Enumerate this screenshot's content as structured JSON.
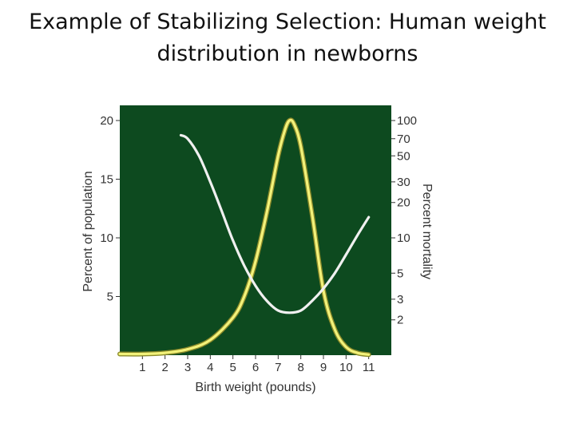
{
  "slide": {
    "title_line1": "Example of Stabilizing Selection: Human weight",
    "title_line2": "distribution in newborns"
  },
  "chart_data": {
    "type": "line",
    "xlabel": "Birth weight (pounds)",
    "ylabel_left": "Percent of population",
    "ylabel_right": "Percent mortality",
    "x_ticks": [
      1,
      2,
      3,
      4,
      5,
      6,
      7,
      8,
      9,
      10,
      11
    ],
    "xlim": [
      0,
      12
    ],
    "y_left_ticks": [
      5,
      10,
      15,
      20
    ],
    "y_left_lim": [
      0,
      20
    ],
    "y_right_ticks": [
      2,
      3,
      5,
      10,
      20,
      30,
      50,
      70,
      100
    ],
    "y_right_scale": "log",
    "y_right_lim": [
      1,
      100
    ],
    "background_color": "#0d4a1f",
    "grid": false,
    "legend": "none",
    "series": [
      {
        "axis": "left",
        "color": "#f2f27a",
        "x": [
          0,
          1,
          2,
          3,
          4,
          5,
          5.5,
          6,
          6.5,
          7,
          7.3,
          7.5,
          7.7,
          8,
          8.5,
          9,
          9.5,
          10,
          10.5,
          11
        ],
        "values": [
          0.1,
          0.1,
          0.2,
          0.5,
          1.3,
          3.2,
          5.0,
          8.0,
          12.2,
          17.0,
          19.2,
          20.0,
          19.7,
          17.8,
          12.0,
          5.5,
          2.2,
          0.7,
          0.2,
          0.05
        ]
      },
      {
        "axis": "right",
        "color": "#f0f0f0",
        "x": [
          2.7,
          3,
          3.5,
          4,
          4.5,
          5,
          5.5,
          6,
          6.5,
          7,
          7.5,
          8,
          8.5,
          9,
          9.5,
          10,
          10.5,
          11
        ],
        "values": [
          75,
          70,
          50,
          30,
          17,
          9.5,
          5.8,
          3.9,
          2.9,
          2.4,
          2.3,
          2.4,
          2.9,
          3.7,
          5,
          7.2,
          10.5,
          15
        ]
      }
    ]
  }
}
